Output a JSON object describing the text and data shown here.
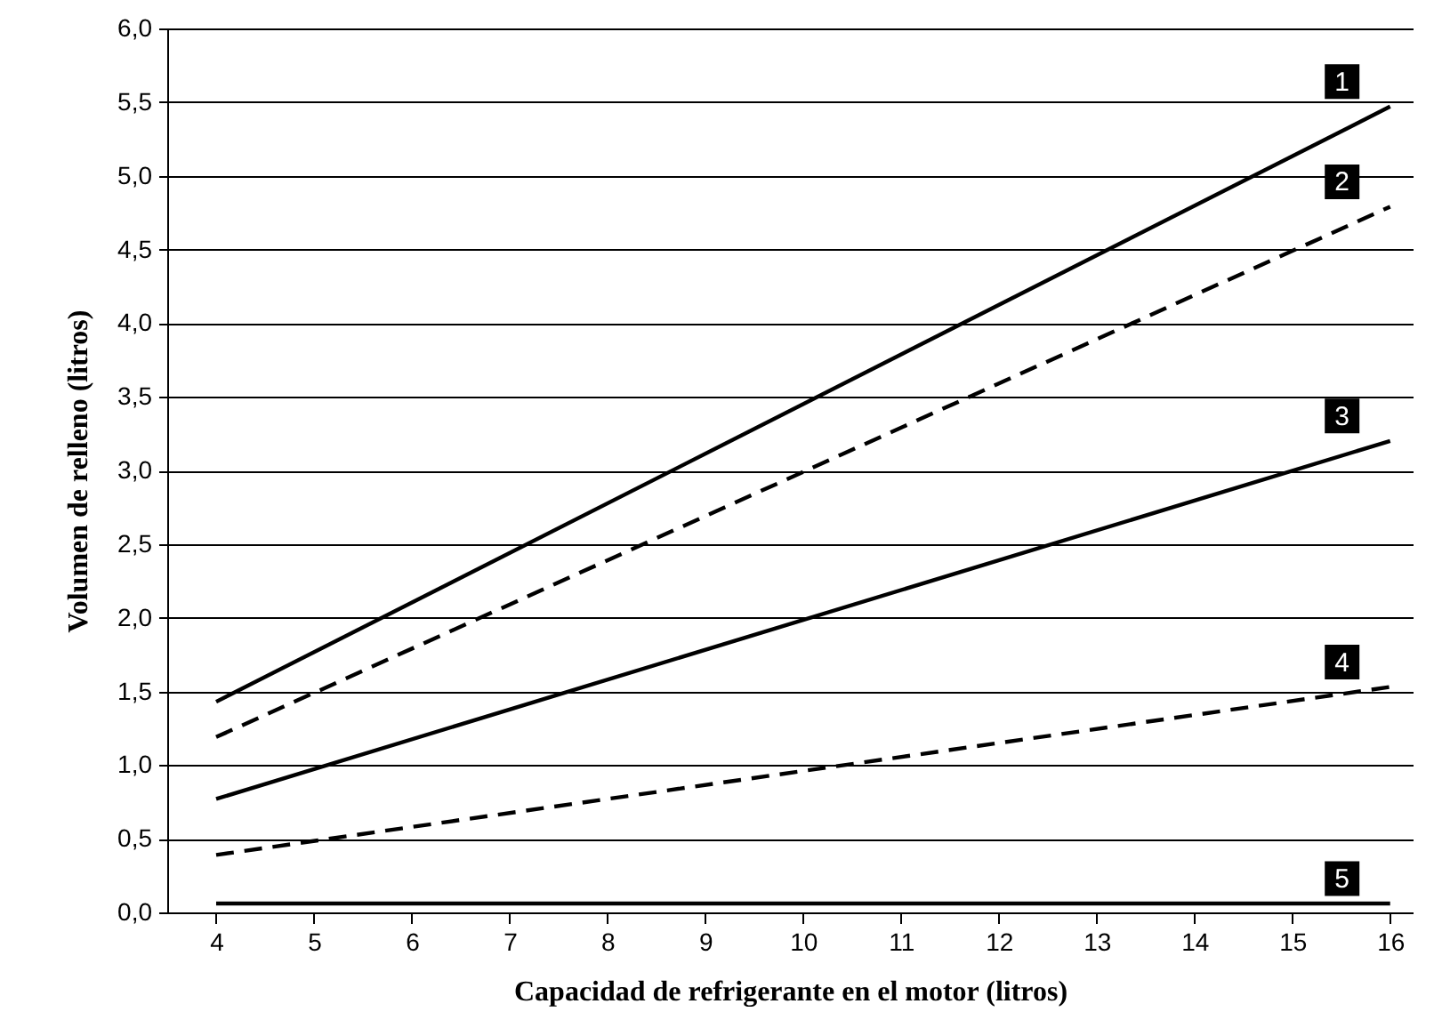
{
  "chart_data": {
    "type": "line",
    "xlabel": "Capacidad de refrigerante en el motor (litros)",
    "ylabel": "Volumen de relleno (litros)",
    "x": [
      4,
      16
    ],
    "series": [
      {
        "name": "1",
        "color": "#000000",
        "line_style": "solid",
        "values": [
          1.43,
          5.47
        ]
      },
      {
        "name": "2",
        "color": "#000000",
        "line_style": "dashed",
        "values": [
          1.19,
          4.79
        ]
      },
      {
        "name": "3",
        "color": "#000000",
        "line_style": "solid",
        "values": [
          0.77,
          3.2
        ]
      },
      {
        "name": "4",
        "color": "#000000",
        "line_style": "dashed",
        "values": [
          0.39,
          1.53
        ]
      },
      {
        "name": "5",
        "color": "#000000",
        "line_style": "solid",
        "values": [
          0.06,
          0.06
        ]
      }
    ],
    "xlim": [
      3.5,
      16.23
    ],
    "xticks": [
      4,
      5,
      6,
      7,
      8,
      9,
      10,
      11,
      12,
      13,
      14,
      15,
      16
    ],
    "ylim": [
      0,
      6
    ],
    "yticks": [
      {
        "value": 0,
        "label": "0,0"
      },
      {
        "value": 0.5,
        "label": "0,5"
      },
      {
        "value": 1,
        "label": "1,0"
      },
      {
        "value": 1.5,
        "label": "1,5"
      },
      {
        "value": 2,
        "label": "2,0"
      },
      {
        "value": 2.5,
        "label": "2,5"
      },
      {
        "value": 3,
        "label": "3,0"
      },
      {
        "value": 3.5,
        "label": "3,5"
      },
      {
        "value": 4,
        "label": "4,0"
      },
      {
        "value": 4.5,
        "label": "4,5"
      },
      {
        "value": 5,
        "label": "5,0"
      },
      {
        "value": 5.5,
        "label": "5,5"
      },
      {
        "value": 6,
        "label": "6,0"
      }
    ],
    "grid": "y",
    "marker": "none"
  }
}
